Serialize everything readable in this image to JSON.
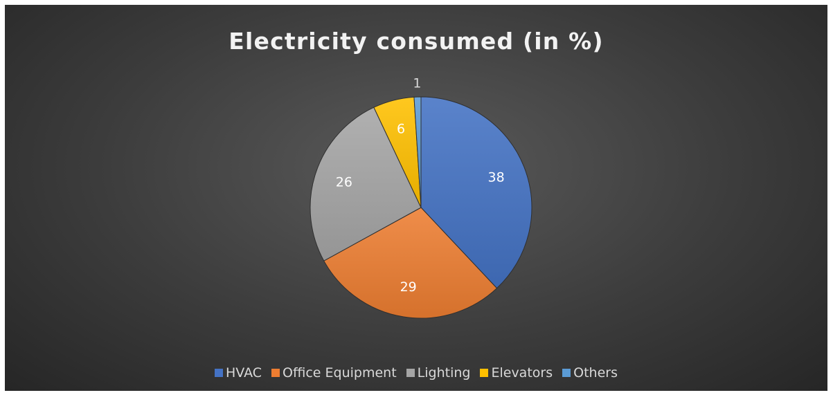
{
  "chart_data": {
    "type": "pie",
    "title": "Electricity consumed (in %)",
    "categories": [
      "HVAC",
      "Office Equipment",
      "Lighting",
      "Elevators",
      "Others"
    ],
    "values": [
      38,
      29,
      26,
      6,
      1
    ],
    "colors": [
      "#4472C4",
      "#ED7D31",
      "#A5A5A5",
      "#FFC000",
      "#5B9BD5"
    ],
    "data_labels": true,
    "legend": "bottom",
    "start_angle": "12 o'clock, clockwise"
  }
}
